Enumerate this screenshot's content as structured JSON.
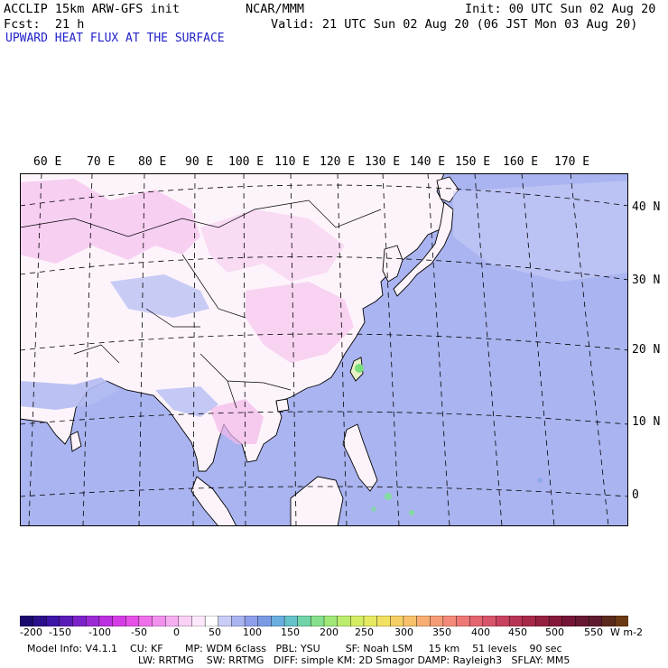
{
  "header": {
    "model": "ACCLIP 15km ARW-GFS init",
    "org": "NCAR/MMM",
    "init": "Init: 00 UTC Sun 02 Aug 20",
    "fcst": "Fcst:  21 h",
    "valid": "Valid: 21 UTC Sun 02 Aug 20 (06 JST Mon 03 Aug 20)",
    "field": "UPWARD HEAT FLUX AT THE SURFACE"
  },
  "lon_labels": [
    "60 E",
    "70 E",
    "80 E",
    "90 E",
    "100 E",
    "110 E",
    "120 E",
    "130 E",
    "140 E",
    "150 E",
    "160 E",
    "170 E"
  ],
  "lat_labels": [
    "40 N",
    "30 N",
    "20 N",
    "10 N",
    "0"
  ],
  "colorbar": {
    "ticks": [
      "-200",
      "-150",
      "-100",
      "-50",
      "0",
      "50",
      "100",
      "150",
      "200",
      "250",
      "300",
      "350",
      "400",
      "450",
      "500",
      "550"
    ],
    "unit": "W m-2",
    "colors": [
      "#1a0a6e",
      "#2c0f8a",
      "#3d14a6",
      "#5a1cb8",
      "#7a22c8",
      "#9b2ad6",
      "#bb30e0",
      "#d63ce6",
      "#e650e6",
      "#ee70ea",
      "#f290ee",
      "#f6b0f2",
      "#fad0f6",
      "#fce8fa",
      "#ffffff",
      "#c8ccf6",
      "#aab4f0",
      "#8e9eea",
      "#7a9ae6",
      "#6aaee0",
      "#64c2c8",
      "#70d4a8",
      "#84e08c",
      "#a0e878",
      "#bcec6c",
      "#d4ee64",
      "#e6ea60",
      "#f2e062",
      "#f6d064",
      "#f8c06a",
      "#f8ae72",
      "#f69c76",
      "#f48a78",
      "#ee7876",
      "#e46470",
      "#d8546a",
      "#c84260",
      "#b83454",
      "#a82848",
      "#962040",
      "#84183a",
      "#741436",
      "#681832",
      "#5e1c2e",
      "#5a2a1c",
      "#6a3a14"
    ]
  },
  "info": {
    "line1": "Model Info: V4.1.1    CU: KF       MP: WDM 6class   PBL: YSU        SF: Noah LSM     15 km    51 levels    90 sec",
    "line2": "LW: RRTMG    SW: RRTMG   DIFF: simple KM: 2D Smagor DAMP: Rayleigh3   SFLAY: MM5"
  },
  "colors": {
    "ocean": "#aab4f0",
    "land": "#fdf4fb",
    "land_pink": "#f6c8ee",
    "header_blue": "#2222cc"
  }
}
